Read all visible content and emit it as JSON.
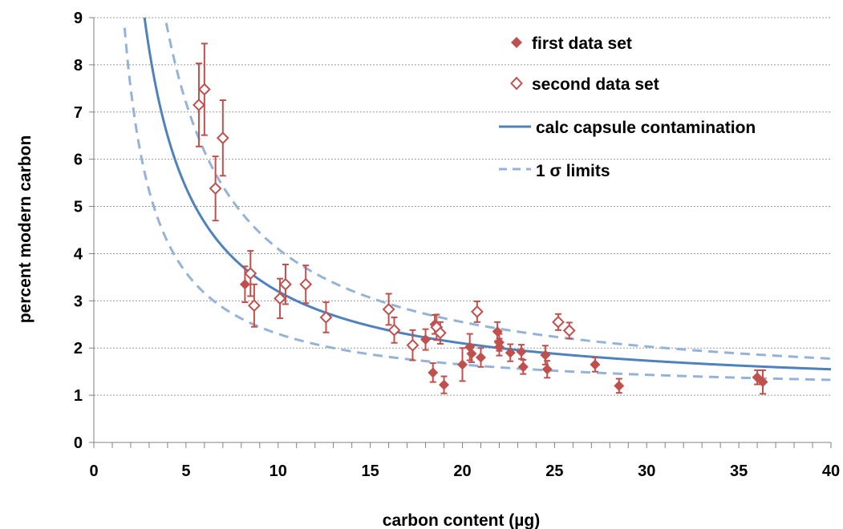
{
  "chart_data": {
    "type": "scatter",
    "xlabel": "carbon content (µg)",
    "ylabel": "percent modern carbon",
    "xlim": [
      0,
      40
    ],
    "ylim": [
      0,
      9
    ],
    "x_ticks": [
      0,
      5,
      10,
      15,
      20,
      25,
      30,
      35,
      40
    ],
    "y_ticks": [
      0,
      1,
      2,
      3,
      4,
      5,
      6,
      7,
      8,
      9
    ],
    "grid": "horizontal dotted",
    "legend_position": "top-right",
    "colors": {
      "points": "#c0504d",
      "curve": "#4f81bd",
      "limits": "#95b3d7"
    },
    "series": [
      {
        "name": "first data set",
        "marker": "filled-diamond",
        "points": [
          {
            "x": 8.2,
            "y": 3.35,
            "err": 0.38
          },
          {
            "x": 18.0,
            "y": 2.18,
            "err": 0.22
          },
          {
            "x": 18.4,
            "y": 1.48,
            "err": 0.2
          },
          {
            "x": 18.5,
            "y": 2.5,
            "err": 0.2
          },
          {
            "x": 19.0,
            "y": 1.22,
            "err": 0.18
          },
          {
            "x": 20.0,
            "y": 1.65,
            "err": 0.35
          },
          {
            "x": 20.4,
            "y": 2.02,
            "err": 0.28
          },
          {
            "x": 20.5,
            "y": 1.88,
            "err": 0.18
          },
          {
            "x": 21.0,
            "y": 1.8,
            "err": 0.2
          },
          {
            "x": 21.9,
            "y": 2.35,
            "err": 0.2
          },
          {
            "x": 22.0,
            "y": 2.12,
            "err": 0.18
          },
          {
            "x": 22.0,
            "y": 2.02,
            "err": 0.18
          },
          {
            "x": 22.6,
            "y": 1.9,
            "err": 0.18
          },
          {
            "x": 23.2,
            "y": 1.92,
            "err": 0.15
          },
          {
            "x": 23.3,
            "y": 1.6,
            "err": 0.15
          },
          {
            "x": 24.5,
            "y": 1.85,
            "err": 0.2
          },
          {
            "x": 24.6,
            "y": 1.55,
            "err": 0.18
          },
          {
            "x": 27.2,
            "y": 1.65,
            "err": 0.15
          },
          {
            "x": 28.5,
            "y": 1.2,
            "err": 0.15
          },
          {
            "x": 36.0,
            "y": 1.38,
            "err": 0.15
          },
          {
            "x": 36.3,
            "y": 1.28,
            "err": 0.25
          }
        ]
      },
      {
        "name": "second data set",
        "marker": "open-diamond",
        "points": [
          {
            "x": 5.7,
            "y": 7.15,
            "err": 0.88
          },
          {
            "x": 6.0,
            "y": 7.48,
            "err": 0.97
          },
          {
            "x": 6.6,
            "y": 5.38,
            "err": 0.68
          },
          {
            "x": 7.0,
            "y": 6.45,
            "err": 0.8
          },
          {
            "x": 8.5,
            "y": 3.58,
            "err": 0.48
          },
          {
            "x": 8.7,
            "y": 2.9,
            "err": 0.45
          },
          {
            "x": 10.1,
            "y": 3.05,
            "err": 0.42
          },
          {
            "x": 10.4,
            "y": 3.35,
            "err": 0.42
          },
          {
            "x": 11.5,
            "y": 3.35,
            "err": 0.4
          },
          {
            "x": 12.6,
            "y": 2.65,
            "err": 0.32
          },
          {
            "x": 16.0,
            "y": 2.82,
            "err": 0.33
          },
          {
            "x": 16.3,
            "y": 2.38,
            "err": 0.27
          },
          {
            "x": 17.3,
            "y": 2.06,
            "err": 0.32
          },
          {
            "x": 18.6,
            "y": 2.44,
            "err": 0.27
          },
          {
            "x": 18.8,
            "y": 2.32,
            "err": 0.23
          },
          {
            "x": 20.8,
            "y": 2.77,
            "err": 0.22
          },
          {
            "x": 25.2,
            "y": 2.55,
            "err": 0.17
          },
          {
            "x": 25.8,
            "y": 2.37,
            "err": 0.17
          }
        ]
      },
      {
        "name": "calc capsule contamination",
        "type": "line",
        "style": "solid"
      },
      {
        "name": "1 σ limits",
        "type": "line",
        "style": "dashed"
      }
    ]
  }
}
